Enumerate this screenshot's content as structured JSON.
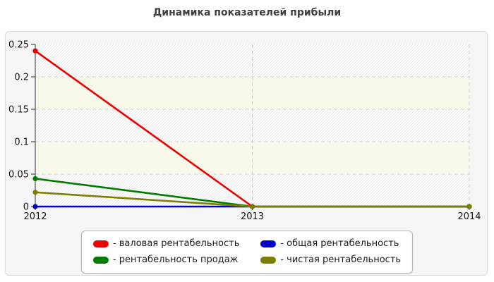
{
  "title": "Динамика показателей прибыли",
  "colors": {
    "red": "#ee0000",
    "blue": "#0000cc",
    "green": "#007c00",
    "olive": "#7d7d00",
    "panel_bg": "#f5f5f5",
    "panel_border": "#dcdcdc",
    "band_ivory": "#f8f8e9",
    "hatch_line": "#e4e4e4",
    "grid_line": "#d4d4d4",
    "axis_line": "#333333",
    "tick_text": "#141414",
    "title_text": "#3f3f3f"
  },
  "chart_data": {
    "type": "line",
    "title": "Динамика показателей прибыли",
    "x": [
      2012,
      2013,
      2014
    ],
    "x_tick_labels": [
      "2012",
      "2013",
      "2014"
    ],
    "y_ticks": [
      0.25,
      0.2,
      0.15,
      0.1,
      0.05,
      0
    ],
    "y_tick_labels": [
      "0.25",
      "0.2",
      "0.15",
      "0.1",
      "0.05",
      "0"
    ],
    "ylim": [
      0,
      0.25
    ],
    "xlabel": "",
    "ylabel": "",
    "grid": "dashed horizontal lines every 0.05; dashed vertical lines at 2013 and 2014; alternating hatched/ivory horizontal bands",
    "legend_position": "bottom-center",
    "series": [
      {
        "name": "валовая рентабельность",
        "color": "#ee0000",
        "values": [
          0.24,
          0,
          0
        ]
      },
      {
        "name": "общая рентабельность",
        "color": "#0000cc",
        "values": [
          0,
          0,
          0
        ]
      },
      {
        "name": "рентабельность продаж",
        "color": "#007c00",
        "values": [
          0.043,
          0,
          0
        ]
      },
      {
        "name": "чистая рентабельность",
        "color": "#7d7d00",
        "values": [
          0.022,
          0,
          0
        ]
      }
    ]
  },
  "legend": {
    "items": [
      {
        "label": "- валовая рентабельность",
        "color": "#ee0000"
      },
      {
        "label": "- общая рентабельность",
        "color": "#0000cc"
      },
      {
        "label": "- рентабельность продаж",
        "color": "#007c00"
      },
      {
        "label": "- чистая рентабельность",
        "color": "#7d7d00"
      }
    ]
  }
}
